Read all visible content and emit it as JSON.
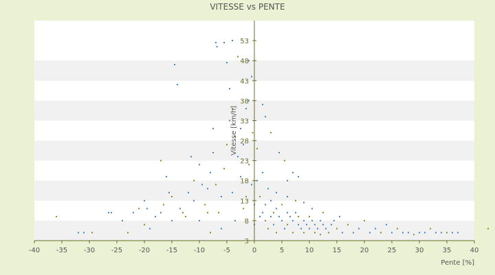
{
  "chart_data": {
    "type": "scatter",
    "title": "VITESSE vs PENTE",
    "xlabel": "Pente [%]",
    "ylabel": "Vitesse [km/h]",
    "xlim": [
      -40,
      40
    ],
    "ylim": [
      3,
      58
    ],
    "x_ticks": [
      -40,
      -35,
      -30,
      -25,
      -20,
      -15,
      -10,
      -5,
      0,
      5,
      10,
      15,
      20,
      25,
      30,
      35,
      40
    ],
    "y_ticks": [
      3,
      8,
      13,
      18,
      23,
      28,
      33,
      38,
      43,
      48,
      53
    ],
    "grid": true,
    "legend": "none",
    "colors": {
      "background": "#ebf1d3",
      "plot_band_light": "#ffffff",
      "plot_band_dark": "#f1f1f1",
      "axis": "#6b6b2a",
      "series_blue": "#3d86c6",
      "series_olive": "#8a8a1e"
    },
    "series": [
      {
        "values": [
          [
            -36.0,
            9.0
          ],
          [
            -32.0,
            5.0
          ],
          [
            -31.0,
            5.0
          ],
          [
            -29.5,
            5.0
          ],
          [
            -26.5,
            10.0
          ],
          [
            -26.0,
            10.0
          ],
          [
            -23.0,
            5.0
          ],
          [
            -22.0,
            10.0
          ],
          [
            -20.0,
            13.0
          ],
          [
            -20.0,
            7.0
          ],
          [
            -19.5,
            11.0
          ],
          [
            -17.0,
            10.0
          ],
          [
            -17.0,
            23.0
          ],
          [
            -16.0,
            19.0
          ],
          [
            -15.5,
            15.0
          ],
          [
            -15.0,
            14.0
          ],
          [
            -14.5,
            47.0
          ],
          [
            -14.0,
            42.0
          ],
          [
            -13.0,
            10.0
          ],
          [
            -12.0,
            15.0
          ],
          [
            -11.5,
            24.0
          ],
          [
            -11.0,
            18.0
          ],
          [
            -10.0,
            8.0
          ],
          [
            -10.0,
            22.0
          ],
          [
            -9.0,
            12.0
          ],
          [
            -8.5,
            16.0
          ],
          [
            -8.0,
            20.0
          ],
          [
            -8.0,
            5.0
          ],
          [
            -7.5,
            25.0
          ],
          [
            -7.5,
            31.0
          ],
          [
            -7.0,
            17.0
          ],
          [
            -7.0,
            52.5
          ],
          [
            -6.8,
            51.5
          ],
          [
            -6.5,
            10.0
          ],
          [
            -6.0,
            14.0
          ],
          [
            -6.0,
            6.0
          ],
          [
            -5.5,
            21.0
          ],
          [
            -5.5,
            52.5
          ],
          [
            -5.0,
            47.5
          ],
          [
            -5.0,
            27.0
          ],
          [
            -4.5,
            33.0
          ],
          [
            -4.5,
            41.0
          ],
          [
            -4.0,
            36.0
          ],
          [
            -4.0,
            53.0
          ],
          [
            -4.0,
            15.0
          ],
          [
            -3.5,
            29.0
          ],
          [
            -3.5,
            8.0
          ],
          [
            -3.0,
            24.0
          ],
          [
            -3.0,
            49.0
          ],
          [
            -2.5,
            31.0
          ],
          [
            -2.5,
            19.0
          ],
          [
            -2.0,
            11.0
          ],
          [
            -2.0,
            27.0
          ],
          [
            -1.5,
            36.0
          ],
          [
            -1.5,
            14.0
          ],
          [
            -1.0,
            48.0
          ],
          [
            -1.0,
            38.0
          ],
          [
            -1.0,
            22.0
          ],
          [
            -0.5,
            44.0
          ],
          [
            -0.5,
            17.0
          ],
          [
            -0.3,
            30.0
          ],
          [
            0.0,
            12.0
          ],
          [
            0.0,
            7.0
          ],
          [
            0.5,
            26.0
          ],
          [
            0.5,
            18.0
          ],
          [
            1.0,
            9.0
          ],
          [
            1.0,
            14.0
          ],
          [
            1.5,
            20.0
          ],
          [
            1.5,
            10.0
          ],
          [
            2.0,
            8.0
          ],
          [
            2.0,
            12.0
          ],
          [
            2.5,
            16.0
          ],
          [
            2.5,
            6.0
          ],
          [
            3.0,
            9.0
          ],
          [
            3.0,
            13.0
          ],
          [
            3.5,
            10.0
          ],
          [
            3.5,
            7.0
          ],
          [
            4.0,
            11.0
          ],
          [
            4.0,
            5.0
          ],
          [
            4.5,
            9.0
          ],
          [
            5.0,
            8.0
          ],
          [
            5.0,
            12.0
          ],
          [
            5.5,
            6.0
          ],
          [
            6.0,
            10.0
          ],
          [
            6.0,
            7.0
          ],
          [
            6.5,
            9.0
          ],
          [
            7.0,
            8.0
          ],
          [
            7.0,
            5.0
          ],
          [
            7.5,
            10.0
          ],
          [
            8.0,
            7.0
          ],
          [
            8.0,
            9.0
          ],
          [
            8.5,
            6.0
          ],
          [
            9.0,
            8.0
          ],
          [
            9.0,
            5.0
          ],
          [
            9.5,
            7.0
          ],
          [
            10.0,
            6.0
          ],
          [
            10.0,
            9.0
          ],
          [
            10.5,
            8.0
          ],
          [
            11.0,
            7.0
          ],
          [
            11.0,
            5.0
          ],
          [
            11.5,
            6.0
          ],
          [
            12.0,
            8.0
          ],
          [
            12.0,
            4.5
          ],
          [
            12.5,
            7.0
          ],
          [
            13.0,
            6.0
          ],
          [
            13.5,
            5.0
          ],
          [
            14.0,
            7.0
          ],
          [
            14.5,
            8.0
          ],
          [
            15.0,
            6.0
          ],
          [
            15.5,
            9.0
          ],
          [
            16.0,
            5.0
          ],
          [
            17.0,
            7.0
          ],
          [
            18.0,
            5.0
          ],
          [
            19.0,
            6.0
          ],
          [
            20.0,
            8.0
          ],
          [
            21.0,
            5.0
          ],
          [
            22.0,
            6.0
          ],
          [
            23.0,
            5.0
          ],
          [
            24.0,
            7.0
          ],
          [
            25.0,
            5.0
          ],
          [
            26.0,
            6.0
          ],
          [
            27.0,
            5.0
          ],
          [
            28.0,
            5.0
          ],
          [
            29.0,
            4.5
          ],
          [
            30.0,
            5.0
          ],
          [
            31.0,
            5.0
          ],
          [
            32.0,
            6.0
          ],
          [
            33.0,
            5.0
          ],
          [
            34.0,
            5.0
          ],
          [
            35.0,
            5.0
          ],
          [
            36.0,
            5.0
          ],
          [
            37.0,
            5.0
          ],
          [
            42.5,
            6.0
          ],
          [
            4.0,
            15.0
          ],
          [
            6.0,
            14.0
          ],
          [
            7.5,
            13.0
          ],
          [
            9.0,
            12.5
          ],
          [
            10.5,
            11.0
          ],
          [
            12.5,
            10.0
          ],
          [
            7.0,
            20.0
          ],
          [
            6.0,
            18.0
          ],
          [
            5.5,
            23.0
          ],
          [
            8.0,
            19.0
          ],
          [
            4.5,
            25.0
          ],
          [
            3.0,
            30.0
          ],
          [
            2.0,
            34.0
          ],
          [
            1.5,
            37.0
          ],
          [
            -8.5,
            10.0
          ],
          [
            -9.5,
            17.0
          ],
          [
            -11.0,
            13.0
          ],
          [
            -12.5,
            9.0
          ],
          [
            -13.5,
            11.0
          ],
          [
            -15.0,
            8.0
          ],
          [
            -16.5,
            12.0
          ],
          [
            -18.0,
            9.0
          ],
          [
            -19.0,
            6.0
          ],
          [
            -21.0,
            11.0
          ],
          [
            -24.0,
            8.0
          ]
        ]
      }
    ]
  }
}
